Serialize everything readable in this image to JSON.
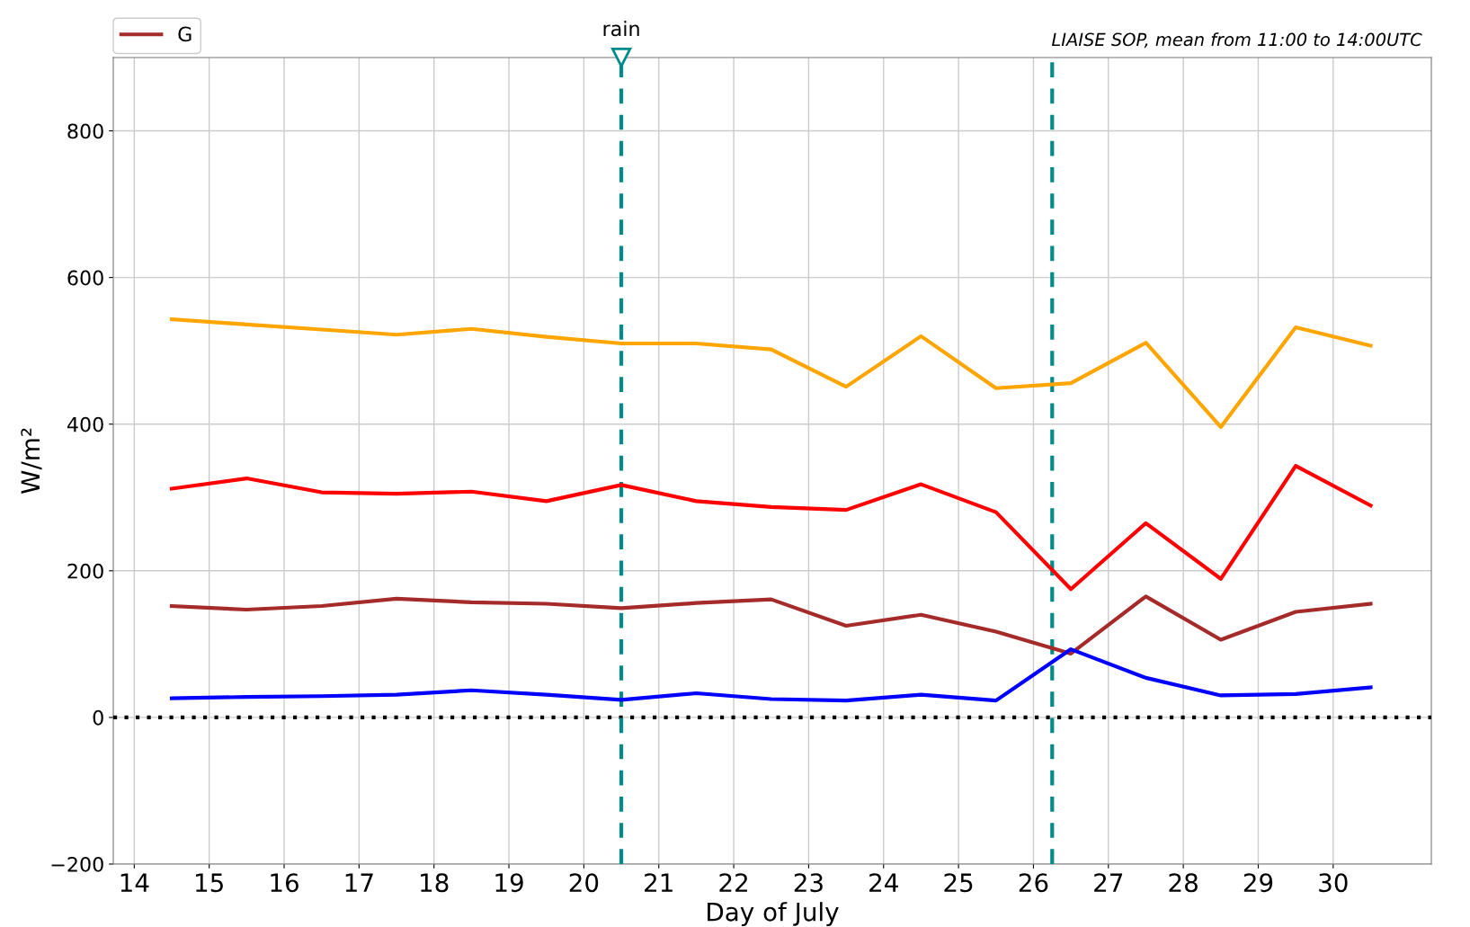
{
  "chart_data": {
    "type": "line",
    "xlabel": "Day of July",
    "ylabel": "W/m²",
    "x": [
      14.5,
      15.5,
      16.5,
      17.5,
      18.5,
      19.5,
      20.5,
      21.5,
      22.5,
      23.5,
      24.5,
      25.5,
      26.5,
      27.5,
      28.5,
      29.5,
      30.5
    ],
    "series": [
      {
        "color": "#ffa500",
        "values": [
          543,
          536,
          529,
          522,
          530,
          519,
          510,
          510,
          502,
          451,
          520,
          449,
          456,
          511,
          396,
          532,
          507
        ]
      },
      {
        "color": "#ff0000",
        "values": [
          312,
          326,
          307,
          305,
          308,
          295,
          317,
          295,
          287,
          283,
          318,
          280,
          175,
          265,
          189,
          343,
          289
        ]
      },
      {
        "name": "G",
        "color": "#a52a2a",
        "values": [
          152,
          147,
          152,
          162,
          157,
          155,
          149,
          156,
          161,
          125,
          140,
          117,
          87,
          165,
          106,
          144,
          155
        ]
      },
      {
        "color": "#0000ff",
        "values": [
          26,
          28,
          29,
          31,
          37,
          31,
          24,
          33,
          25,
          23,
          31,
          23,
          93,
          54,
          30,
          32,
          41
        ]
      }
    ],
    "xlim": [
      13.72,
      31.31
    ],
    "xticks": [
      14,
      15,
      16,
      17,
      18,
      19,
      20,
      21,
      22,
      23,
      24,
      25,
      26,
      27,
      28,
      29,
      30
    ],
    "ylim": [
      -200,
      900
    ],
    "yticks": [
      {
        "value": -200,
        "label": "−200"
      },
      0,
      200,
      400,
      600,
      800
    ],
    "ref_lines": [
      {
        "axis": "y",
        "value": 0,
        "color": "#000000",
        "line_style": "dotted"
      },
      {
        "axis": "x",
        "value": 20.5,
        "color": "#008b8b",
        "line_style": "dashed"
      },
      {
        "axis": "x",
        "value": 26.25,
        "color": "#008b8b",
        "line_style": "dashed"
      }
    ],
    "annotations": [
      {
        "text": "rain",
        "x": 20.5,
        "y": 900
      },
      "LIAISE SOP, mean from 11:00 to 14:00UTC"
    ],
    "grid": true,
    "legend": "top left",
    "line_style": "solid",
    "marker": "none"
  }
}
